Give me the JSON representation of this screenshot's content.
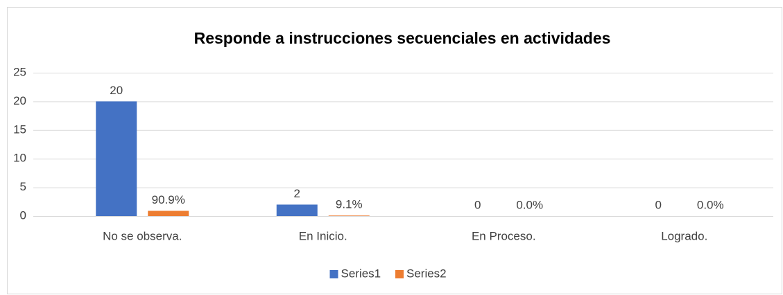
{
  "chart_data": {
    "type": "bar",
    "title": "Responde a instrucciones secuenciales en actividades",
    "categories": [
      "No se observa.",
      "En Inicio.",
      "En Proceso.",
      "Logrado."
    ],
    "series": [
      {
        "name": "Series1",
        "color": "#4472c4",
        "values": [
          20,
          2,
          0,
          0
        ]
      },
      {
        "name": "Series2",
        "color": "#ed7d31",
        "values": [
          0.909,
          0.091,
          0,
          0
        ],
        "value_labels": [
          "90.9%",
          "9.1%",
          "0.0%",
          "0.0%"
        ]
      }
    ],
    "ylim": [
      0,
      25
    ],
    "yticks": [
      0,
      5,
      10,
      15,
      20,
      25
    ],
    "grid": true,
    "legend": "bottom"
  }
}
